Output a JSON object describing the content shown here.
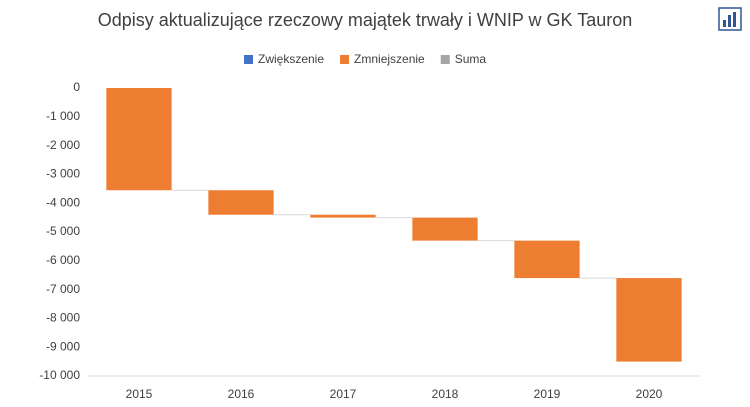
{
  "chart_data": {
    "type": "waterfall",
    "title": "Odpisy aktualizujące rzeczowy majątek trwały i WNIP w GK Tauron",
    "categories": [
      "2015",
      "2016",
      "2017",
      "2018",
      "2019",
      "2020"
    ],
    "series": [
      {
        "name": "Zwiększenie",
        "color": "#4472c4",
        "values": [
          null,
          null,
          null,
          null,
          null,
          null
        ]
      },
      {
        "name": "Zmniejszenie",
        "color": "#ed7d31",
        "values": [
          -3550,
          -850,
          -100,
          -800,
          -1300,
          -2900
        ]
      },
      {
        "name": "Suma",
        "color": "#a5a5a5",
        "values": [
          null,
          null,
          null,
          null,
          null,
          null
        ]
      }
    ],
    "ylim": [
      -10000,
      0
    ],
    "yticks": [
      0,
      {
        "value": -1000,
        "label": "-1 000"
      },
      {
        "value": -2000,
        "label": "-2 000"
      },
      {
        "value": -3000,
        "label": "-3 000"
      },
      {
        "value": -4000,
        "label": "-4 000"
      },
      {
        "value": -5000,
        "label": "-5 000"
      },
      {
        "value": -6000,
        "label": "-6 000"
      },
      {
        "value": -7000,
        "label": "-7 000"
      },
      {
        "value": -8000,
        "label": "-8 000"
      },
      {
        "value": -9000,
        "label": "-9 000"
      },
      {
        "value": -10000,
        "label": "-10 000"
      }
    ],
    "grid": false,
    "legend": "top"
  }
}
